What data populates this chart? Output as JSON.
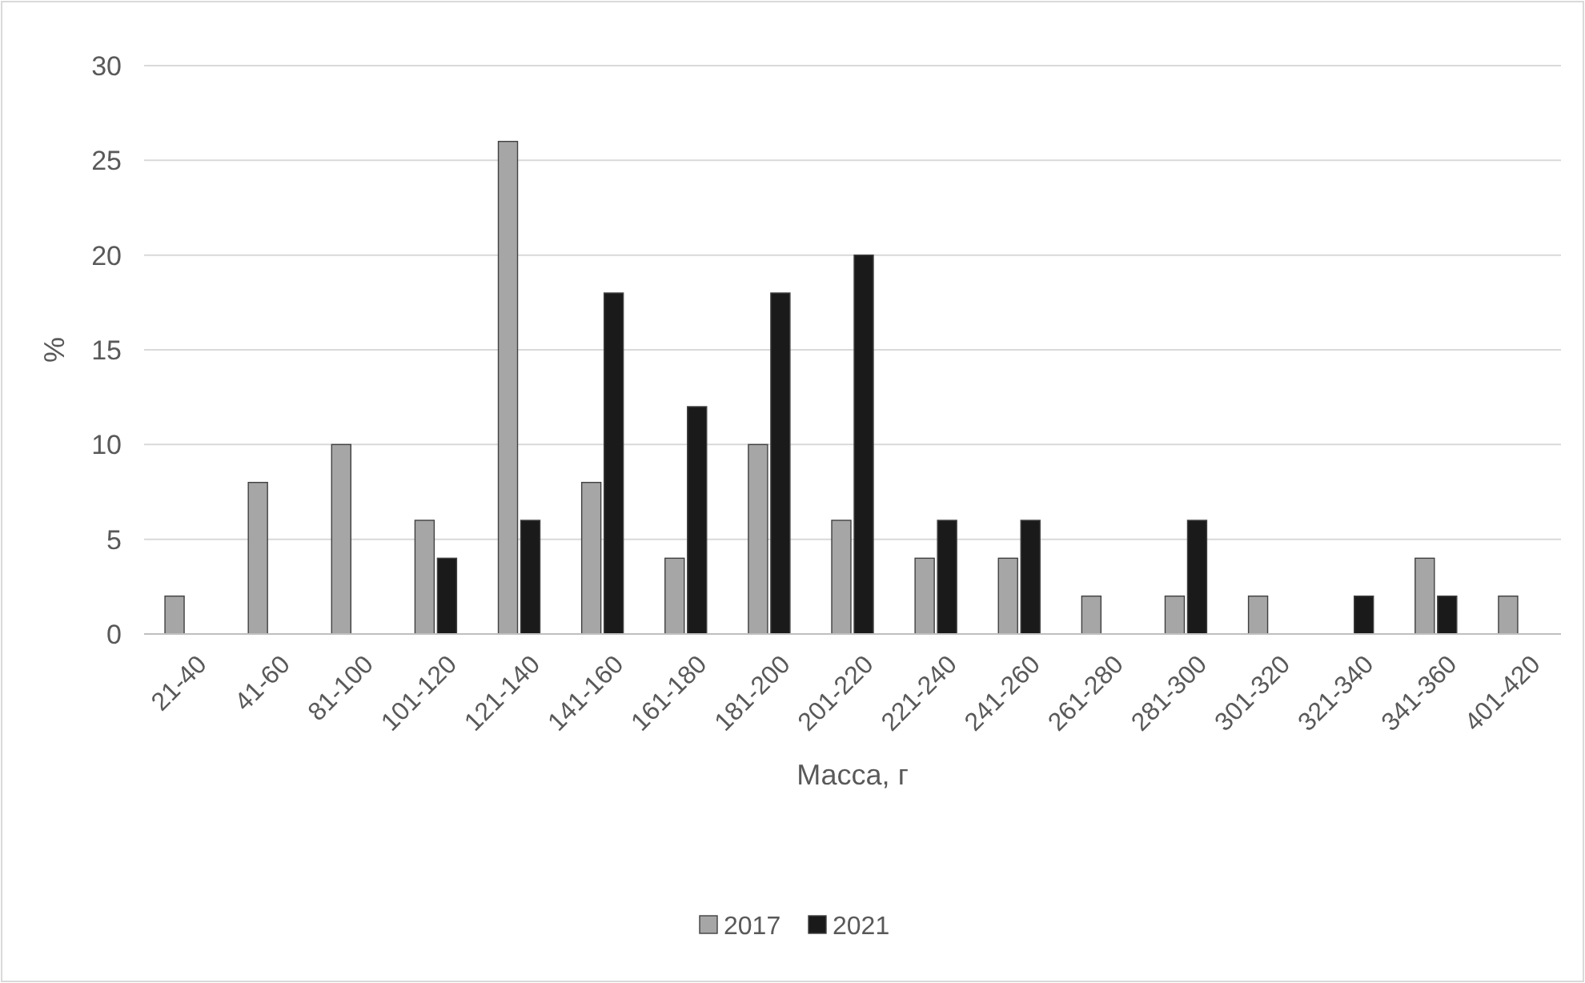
{
  "chart_data": {
    "type": "bar",
    "xlabel": "Масса, г",
    "ylabel": "%",
    "categories": [
      "21-40",
      "41-60",
      "81-100",
      "101-120",
      "121-140",
      "141-160",
      "161-180",
      "181-200",
      "201-220",
      "221-240",
      "241-260",
      "261-280",
      "281-300",
      "301-320",
      "321-340",
      "341-360",
      "401-420"
    ],
    "series": [
      {
        "name": "2017",
        "color": "#a6a6a6",
        "values": [
          2,
          8,
          10,
          6,
          26,
          8,
          4,
          10,
          6,
          4,
          4,
          2,
          2,
          2,
          0,
          4,
          2
        ]
      },
      {
        "name": "2021",
        "color": "#1a1a1a",
        "values": [
          0,
          0,
          0,
          4,
          6,
          18,
          12,
          18,
          20,
          6,
          6,
          0,
          6,
          0,
          2,
          2,
          0
        ]
      }
    ],
    "ylim": [
      0,
      30
    ],
    "yticks": [
      0,
      5,
      10,
      15,
      20,
      25,
      30
    ],
    "grid": "y",
    "legend": "bottom"
  }
}
